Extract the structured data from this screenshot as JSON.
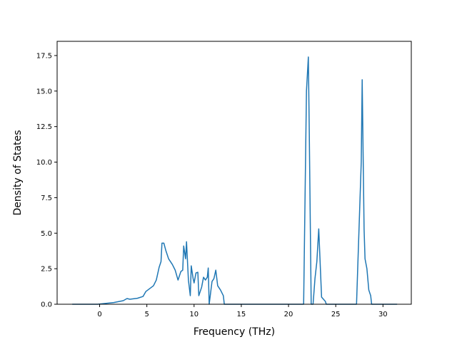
{
  "chart_data": {
    "type": "line",
    "title": "",
    "xlabel": "Frequency (THz)",
    "ylabel": "Density of States",
    "xlim": [
      -4.5,
      33.0
    ],
    "ylim": [
      0,
      18.5
    ],
    "xticks": [
      0,
      5,
      10,
      15,
      20,
      25,
      30
    ],
    "xtick_labels": [
      "0",
      "5",
      "10",
      "15",
      "20",
      "25",
      "30"
    ],
    "yticks": [
      0.0,
      2.5,
      5.0,
      7.5,
      10.0,
      12.5,
      15.0,
      17.5
    ],
    "ytick_labels": [
      "0.0",
      "2.5",
      "5.0",
      "7.5",
      "10.0",
      "12.5",
      "15.0",
      "17.5"
    ],
    "grid": false,
    "legend": false,
    "series_color": "#1f77b4",
    "series": [
      {
        "points": [
          [
            -2.9,
            0
          ],
          [
            -0.2,
            0
          ],
          [
            0.5,
            0.05
          ],
          [
            1.5,
            0.12
          ],
          [
            2.5,
            0.25
          ],
          [
            2.9,
            0.4
          ],
          [
            3.2,
            0.35
          ],
          [
            4.0,
            0.42
          ],
          [
            4.6,
            0.55
          ],
          [
            4.9,
            0.9
          ],
          [
            5.3,
            1.1
          ],
          [
            5.7,
            1.3
          ],
          [
            6.0,
            1.7
          ],
          [
            6.3,
            2.6
          ],
          [
            6.5,
            3.0
          ],
          [
            6.6,
            4.3
          ],
          [
            6.8,
            4.3
          ],
          [
            7.0,
            3.8
          ],
          [
            7.3,
            3.2
          ],
          [
            7.7,
            2.8
          ],
          [
            8.0,
            2.4
          ],
          [
            8.3,
            1.7
          ],
          [
            8.6,
            2.3
          ],
          [
            8.8,
            2.4
          ],
          [
            8.9,
            4.1
          ],
          [
            9.1,
            3.2
          ],
          [
            9.2,
            4.4
          ],
          [
            9.4,
            1.7
          ],
          [
            9.6,
            0.6
          ],
          [
            9.7,
            2.7
          ],
          [
            9.9,
            1.8
          ],
          [
            10.0,
            1.5
          ],
          [
            10.2,
            2.2
          ],
          [
            10.4,
            2.25
          ],
          [
            10.5,
            0.6
          ],
          [
            10.8,
            1.2
          ],
          [
            11.0,
            1.9
          ],
          [
            11.2,
            1.7
          ],
          [
            11.4,
            1.9
          ],
          [
            11.5,
            2.55
          ],
          [
            11.6,
            0.0
          ],
          [
            11.9,
            1.6
          ],
          [
            12.1,
            1.8
          ],
          [
            12.3,
            2.4
          ],
          [
            12.5,
            1.3
          ],
          [
            12.8,
            1.0
          ],
          [
            13.1,
            0.6
          ],
          [
            13.2,
            0.0
          ],
          [
            21.6,
            0.0
          ],
          [
            21.9,
            15.0
          ],
          [
            22.1,
            17.4
          ],
          [
            22.2,
            12.0
          ],
          [
            22.4,
            0.0
          ],
          [
            22.6,
            0.0
          ],
          [
            22.8,
            1.8
          ],
          [
            23.0,
            3.0
          ],
          [
            23.2,
            5.3
          ],
          [
            23.5,
            0.5
          ],
          [
            23.9,
            0.2
          ],
          [
            24.0,
            0.0
          ],
          [
            27.2,
            0.0
          ],
          [
            27.3,
            2.0
          ],
          [
            27.7,
            10.0
          ],
          [
            27.8,
            15.8
          ],
          [
            28.0,
            5.3
          ],
          [
            28.1,
            3.2
          ],
          [
            28.3,
            2.5
          ],
          [
            28.5,
            1.0
          ],
          [
            28.7,
            0.6
          ],
          [
            28.8,
            0.0
          ],
          [
            31.5,
            0.0
          ]
        ]
      }
    ]
  }
}
